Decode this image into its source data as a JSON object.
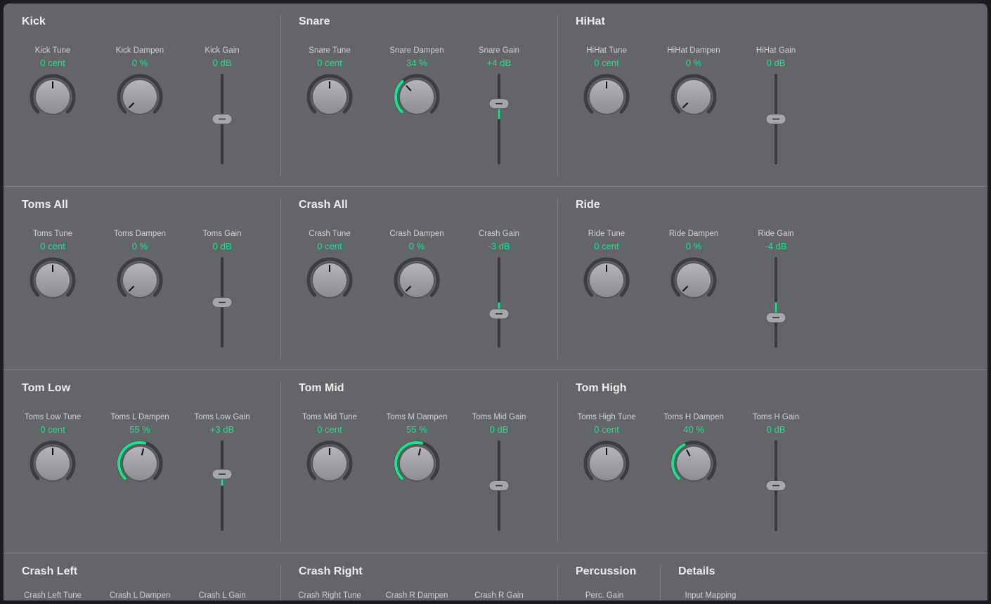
{
  "colors": {
    "accent": "#19e68c",
    "panel": "#646569",
    "text": "#ececec"
  },
  "gain_range_db": [
    -12,
    12
  ],
  "rows": [
    [
      {
        "title": "Kick",
        "controls": [
          {
            "type": "tune",
            "label": "Kick Tune",
            "value": "0 cent",
            "level": 0
          },
          {
            "type": "dampen",
            "label": "Kick Dampen",
            "value": "0 %",
            "level": 0
          },
          {
            "type": "gain",
            "label": "Kick Gain",
            "value": "0 dB",
            "level": 0
          }
        ]
      },
      {
        "title": "Snare",
        "controls": [
          {
            "type": "tune",
            "label": "Snare Tune",
            "value": "0 cent",
            "level": 0
          },
          {
            "type": "dampen",
            "label": "Snare Dampen",
            "value": "34 %",
            "level": 34
          },
          {
            "type": "gain",
            "label": "Snare Gain",
            "value": "+4 dB",
            "level": 4
          }
        ]
      },
      {
        "title": "HiHat",
        "controls": [
          {
            "type": "tune",
            "label": "HiHat Tune",
            "value": "0 cent",
            "level": 0
          },
          {
            "type": "dampen",
            "label": "HiHat Dampen",
            "value": "0 %",
            "level": 0
          },
          {
            "type": "gain",
            "label": "HiHat Gain",
            "value": "0 dB",
            "level": 0
          }
        ]
      }
    ],
    [
      {
        "title": "Toms All",
        "controls": [
          {
            "type": "tune",
            "label": "Toms Tune",
            "value": "0 cent",
            "level": 0
          },
          {
            "type": "dampen",
            "label": "Toms Dampen",
            "value": "0 %",
            "level": 0
          },
          {
            "type": "gain",
            "label": "Toms Gain",
            "value": "0 dB",
            "level": 0
          }
        ]
      },
      {
        "title": "Crash All",
        "controls": [
          {
            "type": "tune",
            "label": "Crash Tune",
            "value": "0 cent",
            "level": 0
          },
          {
            "type": "dampen",
            "label": "Crash Dampen",
            "value": "0 %",
            "level": 0
          },
          {
            "type": "gain",
            "label": "Crash Gain",
            "value": "-3 dB",
            "level": -3
          }
        ]
      },
      {
        "title": "Ride",
        "controls": [
          {
            "type": "tune",
            "label": "Ride Tune",
            "value": "0 cent",
            "level": 0
          },
          {
            "type": "dampen",
            "label": "Ride Dampen",
            "value": "0 %",
            "level": 0
          },
          {
            "type": "gain",
            "label": "Ride Gain",
            "value": "-4 dB",
            "level": -4
          }
        ]
      }
    ],
    [
      {
        "title": "Tom Low",
        "controls": [
          {
            "type": "tune",
            "label": "Toms Low Tune",
            "value": "0 cent",
            "level": 0
          },
          {
            "type": "dampen",
            "label": "Toms L Dampen",
            "value": "55 %",
            "level": 55
          },
          {
            "type": "gain",
            "label": "Toms Low Gain",
            "value": "+3 dB",
            "level": 3
          }
        ]
      },
      {
        "title": "Tom Mid",
        "controls": [
          {
            "type": "tune",
            "label": "Toms Mid Tune",
            "value": "0 cent",
            "level": 0
          },
          {
            "type": "dampen",
            "label": "Toms M Dampen",
            "value": "55 %",
            "level": 55
          },
          {
            "type": "gain",
            "label": "Toms Mid Gain",
            "value": "0 dB",
            "level": 0
          }
        ]
      },
      {
        "title": "Tom High",
        "controls": [
          {
            "type": "tune",
            "label": "Toms High Tune",
            "value": "0 cent",
            "level": 0
          },
          {
            "type": "dampen",
            "label": "Toms H Dampen",
            "value": "40 %",
            "level": 40
          },
          {
            "type": "gain",
            "label": "Toms H Gain",
            "value": "0 dB",
            "level": 0
          }
        ]
      }
    ],
    [
      {
        "title": "Crash Left",
        "controls": [
          {
            "type": "label",
            "label": "Crash Left Tune"
          },
          {
            "type": "label",
            "label": "Crash L Dampen"
          },
          {
            "type": "label",
            "label": "Crash L Gain"
          }
        ]
      },
      {
        "title": "Crash Right",
        "controls": [
          {
            "type": "label",
            "label": "Crash Right Tune"
          },
          {
            "type": "label",
            "label": "Crash R Dampen"
          },
          {
            "type": "label",
            "label": "Crash R Gain"
          }
        ]
      },
      {
        "title": "Percussion",
        "controls": [
          {
            "type": "label",
            "label": "Perc. Gain"
          }
        ]
      },
      {
        "title": "Details",
        "controls": [
          {
            "type": "label",
            "label": "Input Mapping"
          }
        ]
      }
    ]
  ]
}
